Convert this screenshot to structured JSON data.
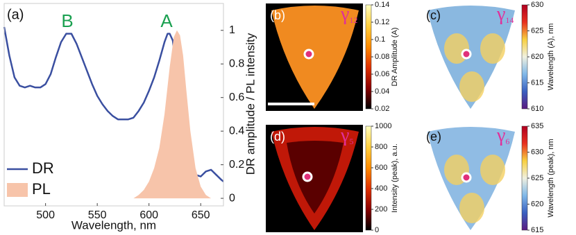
{
  "chart_data": [
    {
      "type": "line",
      "panel_label": "(a)",
      "xlabel": "Wavelength, nm",
      "ylabel": "DR amplitude / PL intensity",
      "annotations": [
        "B",
        "A"
      ],
      "xlim": [
        460,
        672
      ],
      "xticks": [
        500,
        550,
        600,
        650
      ],
      "ylim": [
        -0.045,
        1.16
      ],
      "yticks": [
        0,
        0.2,
        0.4,
        0.6,
        0.8,
        1
      ],
      "series": [
        {
          "name": "DR",
          "color": "#3a4fa0",
          "style": "line",
          "x": [
            460,
            465,
            470,
            475,
            480,
            485,
            490,
            495,
            500,
            505,
            510,
            515,
            520,
            525,
            530,
            535,
            540,
            545,
            550,
            555,
            560,
            565,
            570,
            575,
            580,
            585,
            590,
            595,
            600,
            605,
            610,
            615,
            618,
            620,
            623,
            626,
            630,
            635,
            640,
            645,
            650,
            655,
            660,
            665,
            670,
            672
          ],
          "values": [
            1.02,
            0.85,
            0.72,
            0.67,
            0.66,
            0.67,
            0.66,
            0.66,
            0.68,
            0.74,
            0.84,
            0.93,
            0.98,
            0.98,
            0.92,
            0.84,
            0.76,
            0.68,
            0.61,
            0.56,
            0.52,
            0.49,
            0.47,
            0.47,
            0.47,
            0.48,
            0.52,
            0.57,
            0.64,
            0.72,
            0.82,
            0.93,
            0.98,
            0.98,
            0.94,
            0.8,
            0.55,
            0.33,
            0.2,
            0.14,
            0.13,
            0.16,
            0.17,
            0.14,
            0.11,
            0.1
          ]
        },
        {
          "name": "PL",
          "color": "#f7c4aa",
          "style": "area",
          "x": [
            585,
            590,
            595,
            600,
            605,
            610,
            615,
            620,
            624,
            627,
            630,
            633,
            636,
            640,
            645,
            650,
            655,
            660
          ],
          "values": [
            0,
            0.02,
            0.05,
            0.1,
            0.18,
            0.3,
            0.5,
            0.78,
            0.96,
            1.0,
            0.97,
            0.85,
            0.65,
            0.4,
            0.18,
            0.07,
            0.02,
            0
          ]
        }
      ]
    },
    {
      "type": "heatmap",
      "panel_label": "(b)",
      "symbol": "γ",
      "subscript": "12",
      "colorbar_label": "DR Amplitude (A)",
      "clim": [
        0.02,
        0.14
      ],
      "cticks": [
        0.02,
        0.04,
        0.06,
        0.08,
        0.1,
        0.12,
        0.14
      ],
      "colormap": [
        "#000000",
        "#8a0000",
        "#e03000",
        "#ff8c00",
        "#ffd040",
        "#ffffc0"
      ]
    },
    {
      "type": "heatmap",
      "panel_label": "(c)",
      "symbol": "γ",
      "subscript": "14",
      "colorbar_label": "Wavelength (A), nm",
      "clim": [
        610,
        630
      ],
      "cticks": [
        610,
        615,
        620,
        625,
        630
      ],
      "colormap": [
        "#5a1a80",
        "#3a60c0",
        "#80b8e8",
        "#f0f0e0",
        "#f8d040",
        "#e83020",
        "#b00020"
      ]
    },
    {
      "type": "heatmap",
      "panel_label": "(d)",
      "symbol": "γ",
      "subscript": "5",
      "colorbar_label": "Intensity (peak), a.u.",
      "clim": [
        0,
        1000
      ],
      "cticks": [
        0,
        200,
        400,
        600,
        800,
        1000
      ],
      "colormap": [
        "#000000",
        "#8a0000",
        "#e03000",
        "#ff8c00",
        "#ffd040",
        "#ffffc0"
      ]
    },
    {
      "type": "heatmap",
      "panel_label": "(e)",
      "symbol": "γ",
      "subscript": "6",
      "colorbar_label": "Wavelength (peak), nm",
      "clim": [
        615,
        635
      ],
      "cticks": [
        615,
        620,
        625,
        630,
        635
      ],
      "colormap": [
        "#5a1a80",
        "#3a60c0",
        "#80b8e8",
        "#f0f0e0",
        "#f8d040",
        "#e83020",
        "#b00020"
      ]
    }
  ]
}
